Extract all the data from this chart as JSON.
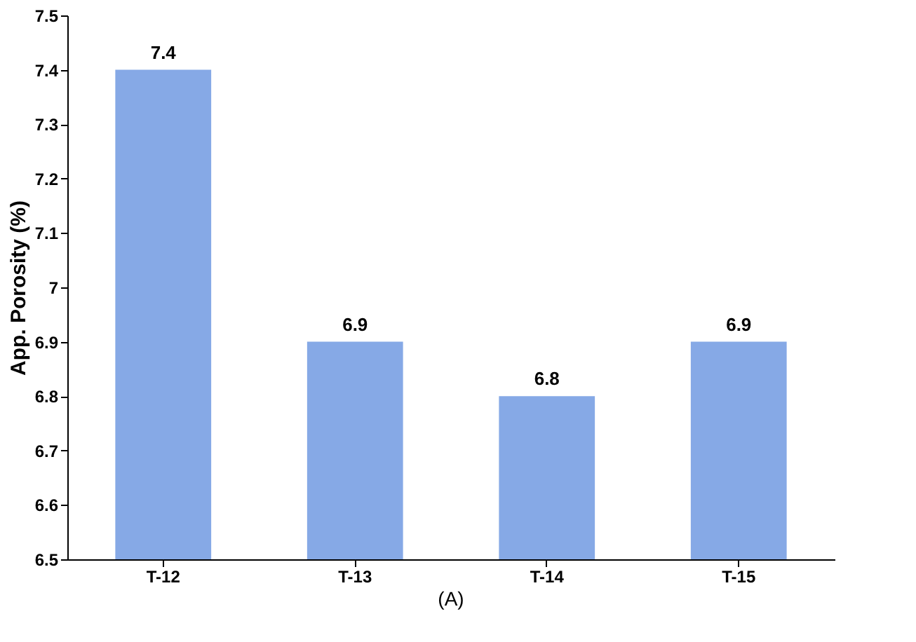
{
  "chart_data": {
    "type": "bar",
    "ylabel": "App. Porosity (%)",
    "categories": [
      "T-12",
      "T-13",
      "T-14",
      "T-15"
    ],
    "values": [
      7.4,
      6.9,
      6.8,
      6.9
    ],
    "color": "#86a9e6",
    "ylim": [
      6.5,
      7.5
    ],
    "yticks": [
      6.5,
      6.6,
      6.7,
      6.8,
      6.9,
      7,
      7.1,
      7.2,
      7.3,
      7.4,
      7.5
    ],
    "data_labels": true,
    "grid": false,
    "annotations": [
      "(A)"
    ]
  }
}
